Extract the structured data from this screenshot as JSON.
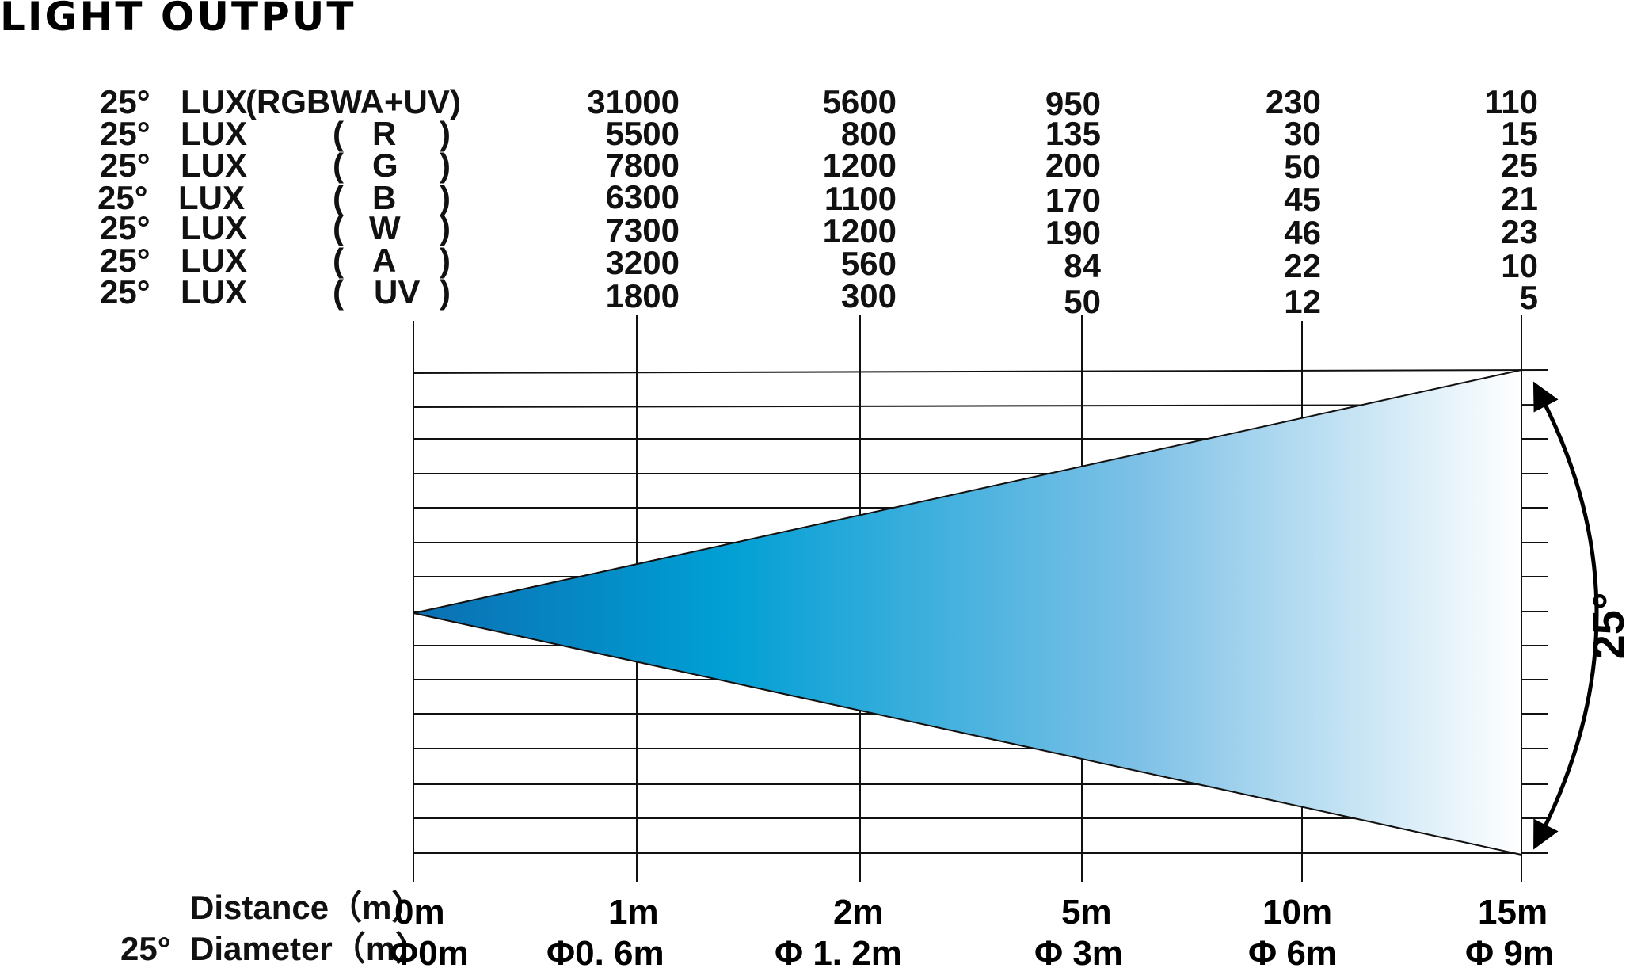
{
  "title": "LIGHT OUTPUT",
  "rows": [
    {
      "angle": "25°",
      "unit": "LUX",
      "channel": "(RGBWA+UV)",
      "values": [
        "31000",
        "5600",
        "950",
        "230",
        "110"
      ]
    },
    {
      "angle": "25°",
      "unit": "LUX",
      "open": "(",
      "channel": "R",
      "close": ")",
      "values": [
        "5500",
        "800",
        "135",
        "30",
        "15"
      ]
    },
    {
      "angle": "25°",
      "unit": "LUX",
      "open": "(",
      "channel": "G",
      "close": ")",
      "values": [
        "7800",
        "1200",
        "200",
        "50",
        "25"
      ]
    },
    {
      "angle": "25°",
      "unit": "LUX",
      "open": "(",
      "channel": "B",
      "close": ")",
      "values": [
        "6300",
        "1100",
        "170",
        "45",
        "21"
      ]
    },
    {
      "angle": "25°",
      "unit": "LUX",
      "open": "(",
      "channel": "W",
      "close": ")",
      "values": [
        "7300",
        "1200",
        "190",
        "46",
        "23"
      ]
    },
    {
      "angle": "25°",
      "unit": "LUX",
      "open": "(",
      "channel": "A",
      "close": ")",
      "values": [
        "3200",
        "560",
        "84",
        "22",
        "10"
      ]
    },
    {
      "angle": "25°",
      "unit": "LUX",
      "open": "(",
      "channel": "UV",
      "close": ")",
      "values": [
        "1800",
        "300",
        "50",
        "12",
        "5"
      ]
    }
  ],
  "distance_label": "Distance（m）",
  "diameter_angle": "25°",
  "diameter_label": "Diameter（m）",
  "distances": [
    "0m",
    "1m",
    "2m",
    "5m",
    "10m",
    "15m"
  ],
  "diameters": [
    "Φ0m",
    "Φ0. 6m",
    "Φ 1. 2m",
    "Φ 3m",
    "Φ 6m",
    "Φ 9m"
  ],
  "beam_angle": "25°",
  "colors": {
    "beam_start": "#0077bb",
    "beam_mid": "#00a0d6",
    "beam_end": "#ffffff",
    "lines": "#111111"
  }
}
